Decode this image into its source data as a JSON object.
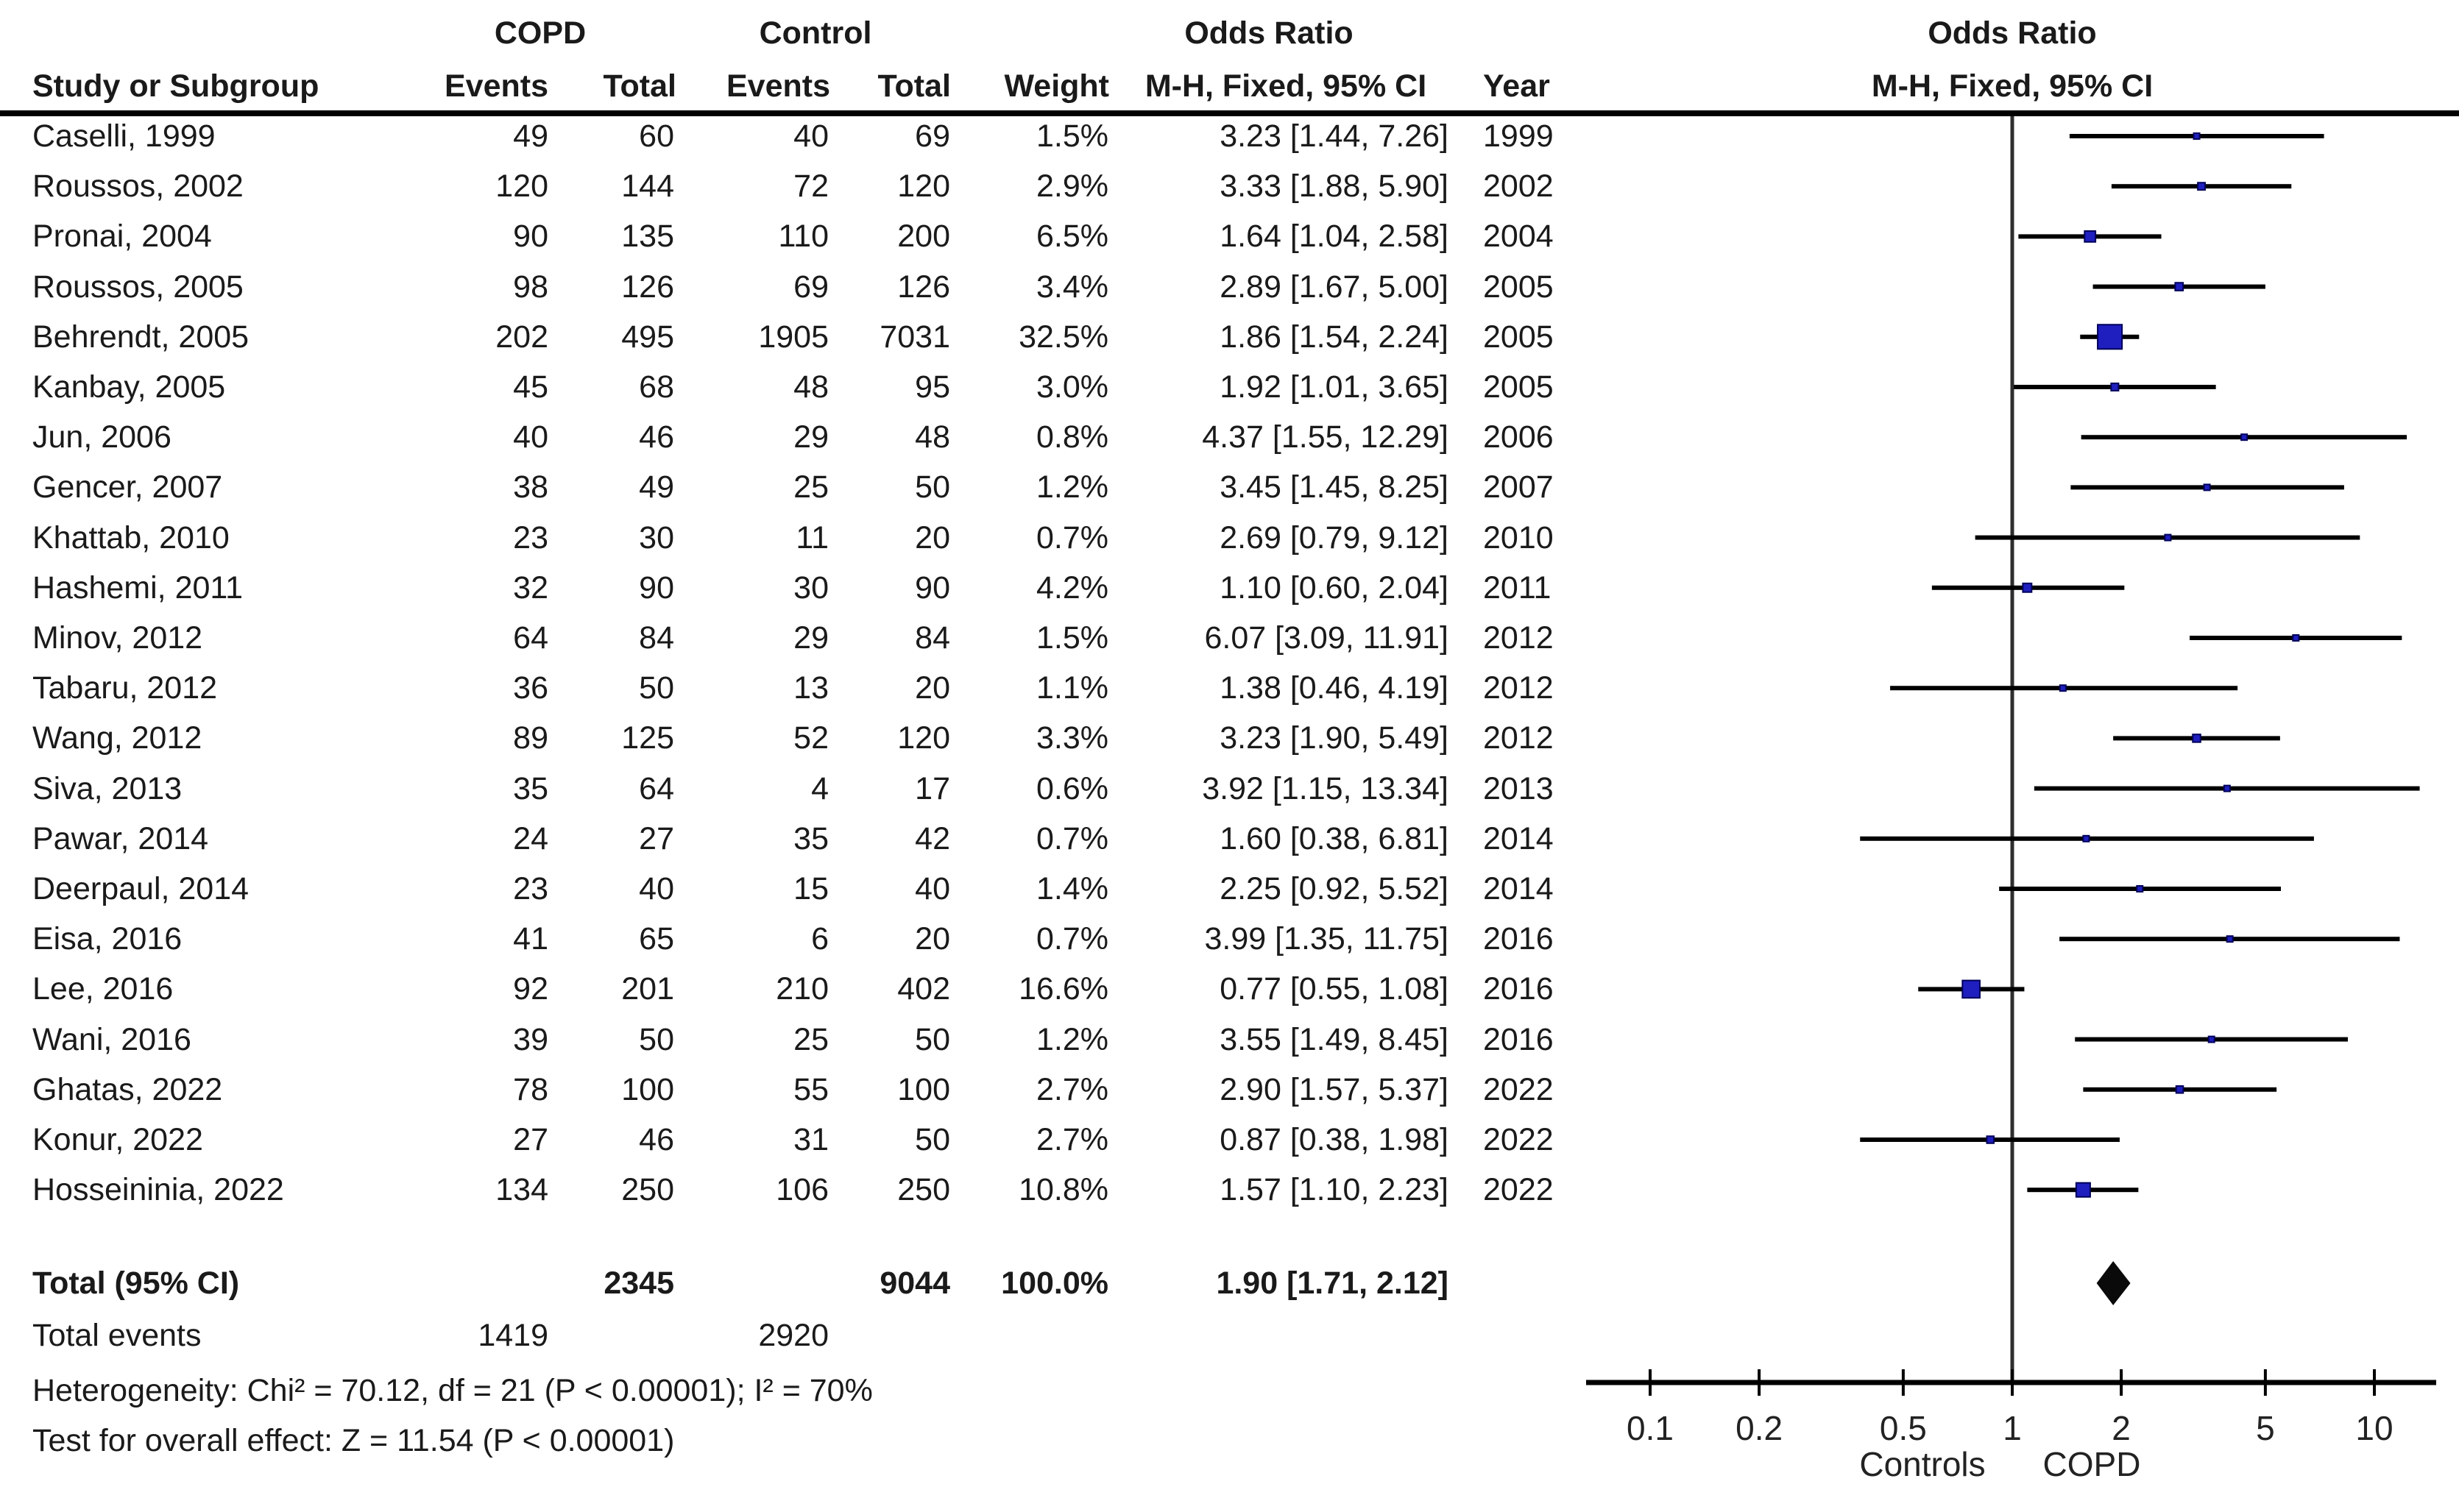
{
  "table": {
    "group1_header": "COPD",
    "group2_header": "Control",
    "or_header": "Odds Ratio",
    "col_headers": {
      "study": "Study or Subgroup",
      "events1": "Events",
      "total1": "Total",
      "events2": "Events",
      "total2": "Total",
      "weight": "Weight",
      "mh_fixed": "M-H, Fixed, 95% CI",
      "year": "Year"
    },
    "plot_header": {
      "title": "Odds Ratio",
      "subtitle": "M-H, Fixed, 95% CI"
    }
  },
  "chart_data": {
    "type": "forest",
    "effect_measure": "Odds Ratio, M-H, Fixed, 95% CI",
    "x_scale": "log10",
    "x_ticks": [
      0.1,
      0.2,
      0.5,
      1,
      2,
      5,
      10
    ],
    "x_axis_labels": [
      "0.1",
      "0.2",
      "0.5",
      "1",
      "2",
      "5",
      "10"
    ],
    "xlim": [
      0.07,
      14.5
    ],
    "null_value": 1,
    "favours_left": "Controls",
    "favours_right": "COPD",
    "studies": [
      {
        "name": "Caselli, 1999",
        "copd_events": 49,
        "copd_total": 60,
        "control_events": 40,
        "control_total": 69,
        "weight": "1.5%",
        "weight_val": 1.5,
        "or": 3.23,
        "lo": 1.44,
        "hi": 7.26,
        "or_text": "3.23 [1.44, 7.26]",
        "year": "1999"
      },
      {
        "name": "Roussos, 2002",
        "copd_events": 120,
        "copd_total": 144,
        "control_events": 72,
        "control_total": 120,
        "weight": "2.9%",
        "weight_val": 2.9,
        "or": 3.33,
        "lo": 1.88,
        "hi": 5.9,
        "or_text": "3.33 [1.88, 5.90]",
        "year": "2002"
      },
      {
        "name": "Pronai, 2004",
        "copd_events": 90,
        "copd_total": 135,
        "control_events": 110,
        "control_total": 200,
        "weight": "6.5%",
        "weight_val": 6.5,
        "or": 1.64,
        "lo": 1.04,
        "hi": 2.58,
        "or_text": "1.64 [1.04, 2.58]",
        "year": "2004"
      },
      {
        "name": "Roussos, 2005",
        "copd_events": 98,
        "copd_total": 126,
        "control_events": 69,
        "control_total": 126,
        "weight": "3.4%",
        "weight_val": 3.4,
        "or": 2.89,
        "lo": 1.67,
        "hi": 5.0,
        "or_text": "2.89 [1.67, 5.00]",
        "year": "2005"
      },
      {
        "name": "Behrendt, 2005",
        "copd_events": 202,
        "copd_total": 495,
        "control_events": 1905,
        "control_total": 7031,
        "weight": "32.5%",
        "weight_val": 32.5,
        "or": 1.86,
        "lo": 1.54,
        "hi": 2.24,
        "or_text": "1.86 [1.54, 2.24]",
        "year": "2005"
      },
      {
        "name": "Kanbay, 2005",
        "copd_events": 45,
        "copd_total": 68,
        "control_events": 48,
        "control_total": 95,
        "weight": "3.0%",
        "weight_val": 3.0,
        "or": 1.92,
        "lo": 1.01,
        "hi": 3.65,
        "or_text": "1.92 [1.01, 3.65]",
        "year": "2005"
      },
      {
        "name": "Jun, 2006",
        "copd_events": 40,
        "copd_total": 46,
        "control_events": 29,
        "control_total": 48,
        "weight": "0.8%",
        "weight_val": 0.8,
        "or": 4.37,
        "lo": 1.55,
        "hi": 12.29,
        "or_text": "4.37 [1.55, 12.29]",
        "year": "2006"
      },
      {
        "name": "Gencer, 2007",
        "copd_events": 38,
        "copd_total": 49,
        "control_events": 25,
        "control_total": 50,
        "weight": "1.2%",
        "weight_val": 1.2,
        "or": 3.45,
        "lo": 1.45,
        "hi": 8.25,
        "or_text": "3.45 [1.45, 8.25]",
        "year": "2007"
      },
      {
        "name": "Khattab, 2010",
        "copd_events": 23,
        "copd_total": 30,
        "control_events": 11,
        "control_total": 20,
        "weight": "0.7%",
        "weight_val": 0.7,
        "or": 2.69,
        "lo": 0.79,
        "hi": 9.12,
        "or_text": "2.69 [0.79, 9.12]",
        "year": "2010"
      },
      {
        "name": "Hashemi, 2011",
        "copd_events": 32,
        "copd_total": 90,
        "control_events": 30,
        "control_total": 90,
        "weight": "4.2%",
        "weight_val": 4.2,
        "or": 1.1,
        "lo": 0.6,
        "hi": 2.04,
        "or_text": "1.10 [0.60, 2.04]",
        "year": "2011"
      },
      {
        "name": "Minov, 2012",
        "copd_events": 64,
        "copd_total": 84,
        "control_events": 29,
        "control_total": 84,
        "weight": "1.5%",
        "weight_val": 1.5,
        "or": 6.07,
        "lo": 3.09,
        "hi": 11.91,
        "or_text": "6.07 [3.09, 11.91]",
        "year": "2012"
      },
      {
        "name": "Tabaru, 2012",
        "copd_events": 36,
        "copd_total": 50,
        "control_events": 13,
        "control_total": 20,
        "weight": "1.1%",
        "weight_val": 1.1,
        "or": 1.38,
        "lo": 0.46,
        "hi": 4.19,
        "or_text": "1.38 [0.46, 4.19]",
        "year": "2012"
      },
      {
        "name": "Wang, 2012",
        "copd_events": 89,
        "copd_total": 125,
        "control_events": 52,
        "control_total": 120,
        "weight": "3.3%",
        "weight_val": 3.3,
        "or": 3.23,
        "lo": 1.9,
        "hi": 5.49,
        "or_text": "3.23 [1.90, 5.49]",
        "year": "2012"
      },
      {
        "name": "Siva, 2013",
        "copd_events": 35,
        "copd_total": 64,
        "control_events": 4,
        "control_total": 17,
        "weight": "0.6%",
        "weight_val": 0.6,
        "or": 3.92,
        "lo": 1.15,
        "hi": 13.34,
        "or_text": "3.92 [1.15, 13.34]",
        "year": "2013"
      },
      {
        "name": "Pawar, 2014",
        "copd_events": 24,
        "copd_total": 27,
        "control_events": 35,
        "control_total": 42,
        "weight": "0.7%",
        "weight_val": 0.7,
        "or": 1.6,
        "lo": 0.38,
        "hi": 6.81,
        "or_text": "1.60 [0.38, 6.81]",
        "year": "2014"
      },
      {
        "name": "Deerpaul, 2014",
        "copd_events": 23,
        "copd_total": 40,
        "control_events": 15,
        "control_total": 40,
        "weight": "1.4%",
        "weight_val": 1.4,
        "or": 2.25,
        "lo": 0.92,
        "hi": 5.52,
        "or_text": "2.25 [0.92, 5.52]",
        "year": "2014"
      },
      {
        "name": "Eisa, 2016",
        "copd_events": 41,
        "copd_total": 65,
        "control_events": 6,
        "control_total": 20,
        "weight": "0.7%",
        "weight_val": 0.7,
        "or": 3.99,
        "lo": 1.35,
        "hi": 11.75,
        "or_text": "3.99 [1.35, 11.75]",
        "year": "2016"
      },
      {
        "name": "Lee, 2016",
        "copd_events": 92,
        "copd_total": 201,
        "control_events": 210,
        "control_total": 402,
        "weight": "16.6%",
        "weight_val": 16.6,
        "or": 0.77,
        "lo": 0.55,
        "hi": 1.08,
        "or_text": "0.77 [0.55, 1.08]",
        "year": "2016"
      },
      {
        "name": "Wani, 2016",
        "copd_events": 39,
        "copd_total": 50,
        "control_events": 25,
        "control_total": 50,
        "weight": "1.2%",
        "weight_val": 1.2,
        "or": 3.55,
        "lo": 1.49,
        "hi": 8.45,
        "or_text": "3.55 [1.49, 8.45]",
        "year": "2016"
      },
      {
        "name": "Ghatas, 2022",
        "copd_events": 78,
        "copd_total": 100,
        "control_events": 55,
        "control_total": 100,
        "weight": "2.7%",
        "weight_val": 2.7,
        "or": 2.9,
        "lo": 1.57,
        "hi": 5.37,
        "or_text": "2.90 [1.57, 5.37]",
        "year": "2022"
      },
      {
        "name": "Konur, 2022",
        "copd_events": 27,
        "copd_total": 46,
        "control_events": 31,
        "control_total": 50,
        "weight": "2.7%",
        "weight_val": 2.7,
        "or": 0.87,
        "lo": 0.38,
        "hi": 1.98,
        "or_text": "0.87 [0.38, 1.98]",
        "year": "2022"
      },
      {
        "name": "Hosseininia, 2022",
        "copd_events": 134,
        "copd_total": 250,
        "control_events": 106,
        "control_total": 250,
        "weight": "10.8%",
        "weight_val": 10.8,
        "or": 1.57,
        "lo": 1.1,
        "hi": 2.23,
        "or_text": "1.57 [1.10, 2.23]",
        "year": "2022"
      }
    ],
    "total": {
      "label": "Total (95% CI)",
      "copd_total": 2345,
      "control_total": 9044,
      "weight": "100.0%",
      "or": 1.9,
      "lo": 1.71,
      "hi": 2.12,
      "or_text": "1.90 [1.71, 2.12]"
    },
    "total_events": {
      "label": "Total events",
      "copd": 1419,
      "control": 2920
    },
    "heterogeneity": "Heterogeneity: Chi² = 70.12, df = 21 (P < 0.00001); I² = 70%",
    "overall_effect": "Test for overall effect: Z = 11.54 (P < 0.00001)"
  },
  "colors": {
    "marker": "#1f1fbf",
    "marker_border": "#00005a",
    "ci_line": "#000000",
    "null_line": "#2e2e2e",
    "diamond": "#0a0a0a",
    "text": "#1a1a1a",
    "background": "#ffffff"
  }
}
